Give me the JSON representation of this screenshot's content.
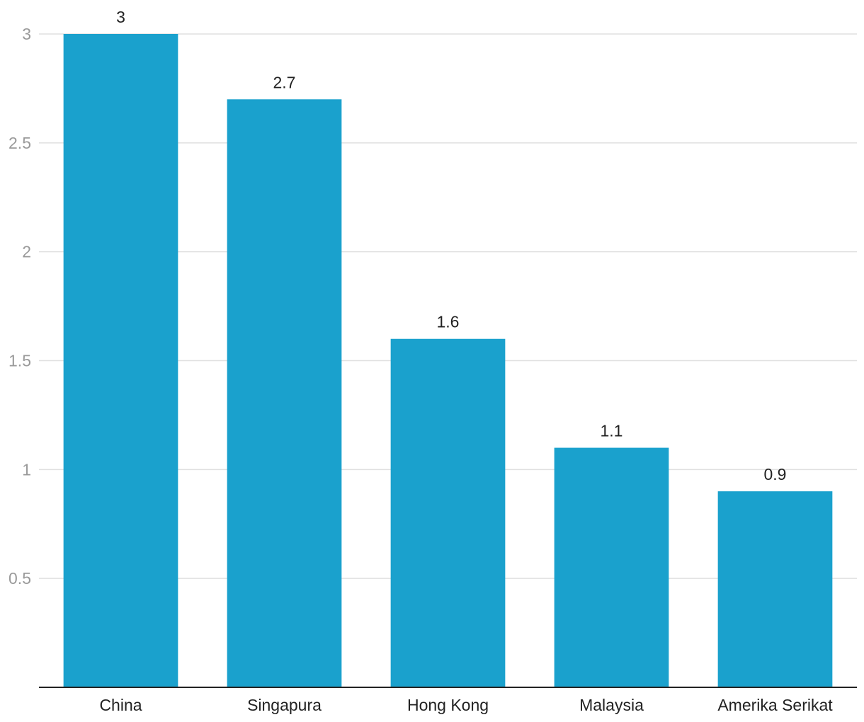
{
  "chart_data": {
    "type": "bar",
    "categories": [
      "China",
      "Singapura",
      "Hong Kong",
      "Malaysia",
      "Amerika Serikat"
    ],
    "values": [
      3,
      2.7,
      1.6,
      1.1,
      0.9
    ],
    "data_labels": [
      "3",
      "2.7",
      "1.6",
      "1.1",
      "0.9"
    ],
    "title": "",
    "xlabel": "",
    "ylabel": "",
    "ylim": [
      0,
      3
    ],
    "y_ticks": [
      0.5,
      1,
      1.5,
      2,
      2.5,
      3
    ],
    "y_tick_labels": [
      "0.5",
      "1",
      "1.5",
      "2",
      "2.5",
      "3"
    ],
    "grid": true,
    "legend": "none",
    "bar_color": "#1aa1cd"
  }
}
